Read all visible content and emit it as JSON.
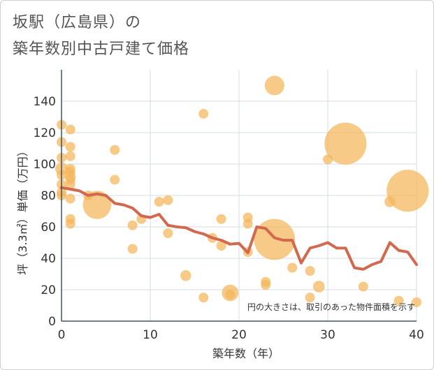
{
  "title_line1": "坂駅（広島県）の",
  "title_line2": "築年数別中古戸建て価格",
  "chart_data": {
    "type": "scatter+line",
    "xlabel": "築年数（年）",
    "ylabel": "坪（3.3㎡）単価（万円）",
    "xlim": [
      0,
      40
    ],
    "ylim": [
      0,
      160
    ],
    "x_ticks": [
      0,
      10,
      20,
      30,
      40
    ],
    "y_ticks": [
      0,
      20,
      40,
      60,
      80,
      100,
      120,
      140
    ],
    "note": "円の大きさは、取引のあった物件面積を示す",
    "colors": {
      "bubble": "#f4b65a",
      "line": "#d2694f",
      "grid": "#d3dde6",
      "axis": "#3d5466"
    },
    "scatter": [
      {
        "x": 0,
        "y": 125,
        "s": 1
      },
      {
        "x": 0,
        "y": 114,
        "s": 1
      },
      {
        "x": 0,
        "y": 104,
        "s": 1
      },
      {
        "x": 0,
        "y": 97,
        "s": 1.3
      },
      {
        "x": 0,
        "y": 93,
        "s": 1
      },
      {
        "x": 0,
        "y": 87,
        "s": 1
      },
      {
        "x": 0,
        "y": 82,
        "s": 1
      },
      {
        "x": 0,
        "y": 80,
        "s": 1
      },
      {
        "x": 1,
        "y": 122,
        "s": 1
      },
      {
        "x": 1,
        "y": 111,
        "s": 1
      },
      {
        "x": 1,
        "y": 105,
        "s": 1
      },
      {
        "x": 1,
        "y": 97,
        "s": 1
      },
      {
        "x": 1,
        "y": 95,
        "s": 1
      },
      {
        "x": 1,
        "y": 92,
        "s": 1.1
      },
      {
        "x": 1,
        "y": 90,
        "s": 1
      },
      {
        "x": 1,
        "y": 87,
        "s": 1
      },
      {
        "x": 1,
        "y": 78,
        "s": 1
      },
      {
        "x": 1,
        "y": 65,
        "s": 1
      },
      {
        "x": 1,
        "y": 62,
        "s": 1
      },
      {
        "x": 3,
        "y": 80,
        "s": 1
      },
      {
        "x": 4,
        "y": 74,
        "s": 2.9
      },
      {
        "x": 6,
        "y": 109,
        "s": 1
      },
      {
        "x": 6,
        "y": 90,
        "s": 1
      },
      {
        "x": 8,
        "y": 61,
        "s": 1
      },
      {
        "x": 8,
        "y": 46,
        "s": 1
      },
      {
        "x": 9,
        "y": 65,
        "s": 1
      },
      {
        "x": 11,
        "y": 76,
        "s": 1
      },
      {
        "x": 12,
        "y": 77,
        "s": 1
      },
      {
        "x": 12,
        "y": 56,
        "s": 1
      },
      {
        "x": 14,
        "y": 29,
        "s": 1.1
      },
      {
        "x": 16,
        "y": 132,
        "s": 1
      },
      {
        "x": 16,
        "y": 15,
        "s": 1
      },
      {
        "x": 17,
        "y": 53,
        "s": 1
      },
      {
        "x": 18,
        "y": 65,
        "s": 1
      },
      {
        "x": 18,
        "y": 48,
        "s": 1
      },
      {
        "x": 19,
        "y": 18,
        "s": 1.7
      },
      {
        "x": 19,
        "y": 17,
        "s": 1
      },
      {
        "x": 21,
        "y": 66,
        "s": 1
      },
      {
        "x": 21,
        "y": 62,
        "s": 1
      },
      {
        "x": 21,
        "y": 44,
        "s": 1
      },
      {
        "x": 23,
        "y": 25,
        "s": 1
      },
      {
        "x": 23,
        "y": 23,
        "s": 1
      },
      {
        "x": 24,
        "y": 150,
        "s": 2
      },
      {
        "x": 24,
        "y": 52,
        "s": 4.2
      },
      {
        "x": 26,
        "y": 34,
        "s": 1
      },
      {
        "x": 28,
        "y": 32,
        "s": 1
      },
      {
        "x": 28,
        "y": 15,
        "s": 1
      },
      {
        "x": 29,
        "y": 22,
        "s": 1.2
      },
      {
        "x": 30,
        "y": 103,
        "s": 1
      },
      {
        "x": 32,
        "y": 113,
        "s": 4.3
      },
      {
        "x": 34,
        "y": 22,
        "s": 1
      },
      {
        "x": 37,
        "y": 76,
        "s": 1.1
      },
      {
        "x": 38,
        "y": 13,
        "s": 1
      },
      {
        "x": 39,
        "y": 83,
        "s": 4.3
      },
      {
        "x": 40,
        "y": 12,
        "s": 1
      }
    ],
    "line": {
      "x": [
        0,
        1,
        2,
        3,
        4,
        5,
        6,
        7,
        8,
        9,
        10,
        11,
        12,
        13,
        14,
        15,
        16,
        17,
        18,
        19,
        20,
        21,
        22,
        23,
        24,
        25,
        26,
        27,
        28,
        29,
        30,
        31,
        32,
        33,
        34,
        35,
        36,
        37,
        38,
        39,
        40
      ],
      "y": [
        85,
        84,
        83,
        80,
        81,
        80,
        75,
        74,
        72,
        67,
        66,
        68,
        61,
        60,
        59.5,
        57,
        55.5,
        53,
        51.5,
        49,
        49.5,
        43.5,
        60,
        59,
        53,
        51.5,
        51.5,
        37,
        46.5,
        48,
        50,
        46.5,
        46.5,
        34,
        33,
        36,
        38,
        50,
        45,
        44,
        36
      ]
    }
  }
}
